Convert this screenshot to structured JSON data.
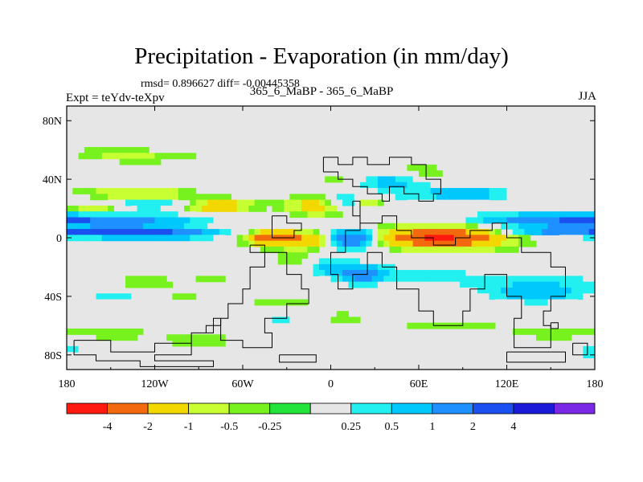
{
  "chart_data": {
    "type": "heatmap",
    "title": "Precipitation - Evaporation (in mm/day)",
    "stats_text": "rmsd= 0.896627 diff= -0.00445358",
    "left_label": "Expt = teYdv-teXpv",
    "center_label": "365_6_MaBP - 365_6_MaBP",
    "right_label": "JJA",
    "xlim": [
      -180,
      180
    ],
    "ylim": [
      -90,
      90
    ],
    "x_ticks": [
      {
        "value": -180,
        "label": "180"
      },
      {
        "value": -120,
        "label": "120W"
      },
      {
        "value": -60,
        "label": "60W"
      },
      {
        "value": 0,
        "label": "0"
      },
      {
        "value": 60,
        "label": "60E"
      },
      {
        "value": 120,
        "label": "120E"
      },
      {
        "value": 180,
        "label": "180"
      }
    ],
    "y_ticks": [
      {
        "value": 80,
        "label": "80N"
      },
      {
        "value": 40,
        "label": "40N"
      },
      {
        "value": 0,
        "label": "0"
      },
      {
        "value": -40,
        "label": "40S"
      },
      {
        "value": -80,
        "label": "80S"
      }
    ],
    "colorbar": {
      "colors": [
        "#ff1a0f",
        "#f26a0d",
        "#f2d800",
        "#c8ff32",
        "#78f21f",
        "#22e43a",
        "#e6e6e6",
        "#22f0f0",
        "#00c8fc",
        "#1e90ff",
        "#1a50f0",
        "#1a1ad8",
        "#7a28e6"
      ],
      "labels": [
        "-4",
        "-2",
        "-1",
        "-0.5",
        "-0.25",
        "0.25",
        "0.5",
        "1",
        "2",
        "4"
      ],
      "label_boundaries": [
        1,
        2,
        3,
        4,
        5,
        7,
        8,
        9,
        10,
        11
      ]
    },
    "features": [
      {
        "lat": 12,
        "lon": 180,
        "wlat": 3,
        "wlon": 60,
        "value": 2.5
      },
      {
        "lat": 13,
        "lon": 178,
        "wlat": 4.5,
        "wlon": 72,
        "value": 1.4
      },
      {
        "lat": 13,
        "lon": 180,
        "wlat": 7,
        "wlon": 85,
        "value": 0.7
      },
      {
        "lat": 5,
        "lon": -170,
        "wlat": 2.5,
        "wlon": 45,
        "value": 2.5
      },
      {
        "lat": 5,
        "lon": -175,
        "wlat": 3.5,
        "wlon": 60,
        "value": 1.4
      },
      {
        "lat": 5,
        "lon": -175,
        "wlat": 5,
        "wlon": 70,
        "value": 0.7
      },
      {
        "lat": 3,
        "lon": -120,
        "wlat": 2.5,
        "wlon": 30,
        "value": 2.5
      },
      {
        "lat": 3,
        "lon": -120,
        "wlat": 4,
        "wlon": 45,
        "value": 1.4
      },
      {
        "lat": 25,
        "lon": -140,
        "wlat": 5,
        "wlon": 35,
        "value": 0.7
      },
      {
        "lat": 24,
        "lon": -115,
        "wlat": 4,
        "wlon": 30,
        "value": 1.4
      },
      {
        "lat": 8,
        "lon": -172,
        "wlat": 3,
        "wlon": 14,
        "value": -1.5
      },
      {
        "lat": 18,
        "lon": -160,
        "wlat": 4,
        "wlon": 22,
        "value": -1.5
      },
      {
        "lat": 28,
        "lon": -125,
        "wlat": 5,
        "wlon": 30,
        "value": -1.5
      },
      {
        "lat": 22,
        "lon": -80,
        "wlat": 4,
        "wlon": 24,
        "value": -1.5
      },
      {
        "lat": 22,
        "lon": -80,
        "wlat": 6,
        "wlon": 30,
        "value": -0.4
      },
      {
        "lat": 30,
        "lon": -150,
        "wlat": 8,
        "wlon": 35,
        "value": -0.4
      },
      {
        "lat": 55,
        "lon": -120,
        "wlat": 4,
        "wlon": 40,
        "value": -0.4
      },
      {
        "lat": 58,
        "lon": -150,
        "wlat": 5,
        "wlon": 30,
        "value": -0.4
      },
      {
        "lat": 40,
        "lon": -130,
        "wlat": 4,
        "wlon": 20,
        "value": 0.35
      },
      {
        "lat": 40,
        "lon": -95,
        "wlat": 4,
        "wlon": 18,
        "value": 0.35
      },
      {
        "lat": 22,
        "lon": -10,
        "wlat": 6,
        "wlon": 20,
        "value": -1.5
      },
      {
        "lat": 25,
        "lon": 10,
        "wlat": 5,
        "wlon": 14,
        "value": 1.4
      },
      {
        "lat": 25,
        "lon": 25,
        "wlat": 3,
        "wlon": 10,
        "value": -1.5
      },
      {
        "lat": 38,
        "lon": 40,
        "wlat": 5,
        "wlon": 20,
        "value": 1.4
      },
      {
        "lat": 30,
        "lon": 60,
        "wlat": 6,
        "wlon": 28,
        "value": 0.7
      },
      {
        "lat": 30,
        "lon": 95,
        "wlat": 5,
        "wlon": 25,
        "value": 1.4
      },
      {
        "lat": 45,
        "lon": 60,
        "wlat": 6,
        "wlon": 25,
        "value": -0.4
      },
      {
        "lat": 40,
        "lon": 5,
        "wlat": 5,
        "wlon": 12,
        "value": -0.4
      },
      {
        "lat": 20,
        "lon": 150,
        "wlat": 5,
        "wlon": 30,
        "value": -0.4
      },
      {
        "lat": 0,
        "lon": 75,
        "wlat": 5,
        "wlon": 30,
        "value": -2.5
      },
      {
        "lat": 0,
        "lon": 80,
        "wlat": 8,
        "wlon": 45,
        "value": -1.5
      },
      {
        "lat": 2,
        "lon": 70,
        "wlat": 11,
        "wlon": 65,
        "value": -0.4
      },
      {
        "lat": 0,
        "lon": -40,
        "wlat": 4,
        "wlon": 14,
        "value": -2.5
      },
      {
        "lat": 0,
        "lon": -38,
        "wlat": 7,
        "wlon": 25,
        "value": -0.8
      },
      {
        "lat": -2,
        "lon": -18,
        "wlat": 5,
        "wlon": 16,
        "value": -1.5
      },
      {
        "lat": 0,
        "lon": 15,
        "wlat": 5,
        "wlon": 12,
        "value": 2.5
      },
      {
        "lat": -2,
        "lon": 15,
        "wlat": 8,
        "wlon": 18,
        "value": 1.4
      },
      {
        "lat": -25,
        "lon": 20,
        "wlat": 5,
        "wlon": 12,
        "value": 2.5
      },
      {
        "lat": -25,
        "lon": 25,
        "wlat": 9,
        "wlon": 20,
        "value": 0.7
      },
      {
        "lat": -20,
        "lon": 0,
        "wlat": 6,
        "wlon": 14,
        "value": 1.4
      },
      {
        "lat": -15,
        "lon": -25,
        "wlat": 6,
        "wlon": 14,
        "value": -0.4
      },
      {
        "lat": -30,
        "lon": -75,
        "wlat": 5,
        "wlon": 25,
        "value": -0.6
      },
      {
        "lat": -35,
        "lon": -65,
        "wlat": 8,
        "wlon": 28,
        "value": 0.6
      },
      {
        "lat": -25,
        "lon": 60,
        "wlat": 6,
        "wlon": 30,
        "value": 0.7
      },
      {
        "lat": -30,
        "lon": 95,
        "wlat": 8,
        "wlon": 30,
        "value": 0.4
      },
      {
        "lat": -38,
        "lon": 140,
        "wlat": 6,
        "wlon": 30,
        "value": 1.4
      },
      {
        "lat": -30,
        "lon": 150,
        "wlat": 8,
        "wlon": 40,
        "value": 0.7
      },
      {
        "lat": -30,
        "lon": -130,
        "wlat": 5,
        "wlon": 25,
        "value": -0.4
      },
      {
        "lat": -40,
        "lon": -100,
        "wlat": 6,
        "wlon": 35,
        "value": -0.4
      },
      {
        "lat": -40,
        "lon": -145,
        "wlat": 5,
        "wlon": 25,
        "value": 0.7
      },
      {
        "lat": -45,
        "lon": -40,
        "wlat": 6,
        "wlon": 35,
        "value": -0.4
      },
      {
        "lat": -55,
        "lon": -30,
        "wlat": 5,
        "wlon": 25,
        "value": 0.7
      },
      {
        "lat": -55,
        "lon": 0,
        "wlat": 6,
        "wlon": 30,
        "value": -0.4
      },
      {
        "lat": -65,
        "lon": -150,
        "wlat": 5,
        "wlon": 30,
        "value": -0.4
      },
      {
        "lat": -70,
        "lon": -90,
        "wlat": 5,
        "wlon": 30,
        "value": -0.4
      },
      {
        "lat": -60,
        "lon": 80,
        "wlat": 5,
        "wlon": 40,
        "value": -0.4
      },
      {
        "lat": -65,
        "lon": 150,
        "wlat": 5,
        "wlon": 30,
        "value": -0.4
      },
      {
        "lat": -75,
        "lon": -170,
        "wlat": 4,
        "wlon": 15,
        "value": 0.4
      },
      {
        "lat": -78,
        "lon": 175,
        "wlat": 4,
        "wlon": 10,
        "value": 0.7
      }
    ],
    "land_outlines": [
      [
        [
          -5,
          45
        ],
        [
          5,
          45
        ],
        [
          5,
          40
        ],
        [
          15,
          40
        ],
        [
          15,
          35
        ],
        [
          25,
          35
        ],
        [
          25,
          30
        ],
        [
          35,
          30
        ],
        [
          35,
          25
        ],
        [
          40,
          25
        ],
        [
          40,
          35
        ],
        [
          50,
          35
        ],
        [
          50,
          30
        ],
        [
          60,
          30
        ],
        [
          60,
          25
        ],
        [
          70,
          25
        ],
        [
          70,
          30
        ],
        [
          75,
          30
        ],
        [
          75,
          40
        ],
        [
          65,
          40
        ],
        [
          65,
          50
        ],
        [
          55,
          50
        ],
        [
          55,
          55
        ],
        [
          40,
          55
        ],
        [
          40,
          50
        ],
        [
          25,
          50
        ],
        [
          25,
          55
        ],
        [
          15,
          55
        ],
        [
          15,
          50
        ],
        [
          5,
          50
        ],
        [
          5,
          55
        ],
        [
          -5,
          55
        ],
        [
          -5,
          45
        ]
      ],
      [
        [
          15,
          25
        ],
        [
          15,
          15
        ],
        [
          20,
          15
        ],
        [
          20,
          10
        ],
        [
          35,
          10
        ],
        [
          35,
          15
        ],
        [
          45,
          15
        ],
        [
          45,
          5
        ],
        [
          55,
          5
        ],
        [
          55,
          0
        ],
        [
          70,
          0
        ],
        [
          70,
          -5
        ],
        [
          85,
          -5
        ],
        [
          85,
          0
        ],
        [
          95,
          0
        ],
        [
          95,
          5
        ],
        [
          110,
          5
        ],
        [
          110,
          10
        ],
        [
          120,
          10
        ],
        [
          120,
          0
        ],
        [
          130,
          0
        ],
        [
          130,
          -10
        ],
        [
          150,
          -10
        ],
        [
          150,
          -20
        ],
        [
          160,
          -20
        ],
        [
          160,
          -40
        ],
        [
          150,
          -40
        ],
        [
          150,
          -50
        ],
        [
          145,
          -50
        ],
        [
          145,
          -60
        ],
        [
          150,
          -60
        ],
        [
          150,
          -75
        ],
        [
          125,
          -75
        ],
        [
          125,
          -55
        ],
        [
          130,
          -55
        ],
        [
          130,
          -40
        ],
        [
          120,
          -40
        ],
        [
          120,
          -25
        ],
        [
          105,
          -25
        ],
        [
          105,
          -35
        ],
        [
          95,
          -35
        ],
        [
          95,
          -50
        ],
        [
          90,
          -50
        ],
        [
          90,
          -60
        ],
        [
          70,
          -60
        ],
        [
          70,
          -50
        ],
        [
          60,
          -50
        ],
        [
          60,
          -35
        ],
        [
          45,
          -35
        ],
        [
          45,
          -20
        ],
        [
          35,
          -20
        ],
        [
          35,
          -10
        ],
        [
          25,
          -10
        ],
        [
          25,
          -25
        ],
        [
          15,
          -25
        ],
        [
          15,
          -35
        ],
        [
          5,
          -35
        ],
        [
          5,
          -25
        ],
        [
          0,
          -25
        ],
        [
          0,
          -10
        ],
        [
          10,
          -10
        ],
        [
          10,
          5
        ],
        [
          20,
          5
        ],
        [
          20,
          25
        ],
        [
          15,
          25
        ]
      ],
      [
        [
          -55,
          -5
        ],
        [
          -45,
          -5
        ],
        [
          -45,
          -10
        ],
        [
          -30,
          -10
        ],
        [
          -30,
          -25
        ],
        [
          -20,
          -25
        ],
        [
          -20,
          -35
        ],
        [
          -15,
          -35
        ],
        [
          -15,
          -45
        ],
        [
          -30,
          -45
        ],
        [
          -30,
          -55
        ],
        [
          -45,
          -55
        ],
        [
          -45,
          -65
        ],
        [
          -40,
          -65
        ],
        [
          -40,
          -75
        ],
        [
          -60,
          -75
        ],
        [
          -60,
          -70
        ],
        [
          -75,
          -70
        ],
        [
          -75,
          -55
        ],
        [
          -70,
          -55
        ],
        [
          -70,
          -45
        ],
        [
          -60,
          -45
        ],
        [
          -60,
          -35
        ],
        [
          -55,
          -35
        ],
        [
          -55,
          -20
        ],
        [
          -45,
          -20
        ],
        [
          -45,
          -10
        ],
        [
          -55,
          -10
        ],
        [
          -55,
          -5
        ]
      ],
      [
        [
          -40,
          15
        ],
        [
          -30,
          15
        ],
        [
          -30,
          10
        ],
        [
          -20,
          10
        ],
        [
          -20,
          5
        ],
        [
          -25,
          5
        ],
        [
          -25,
          0
        ],
        [
          -40,
          0
        ],
        [
          -40,
          15
        ]
      ],
      [
        [
          -175,
          -70
        ],
        [
          -150,
          -70
        ],
        [
          -150,
          -78
        ],
        [
          -120,
          -78
        ],
        [
          -120,
          -72
        ],
        [
          -95,
          -72
        ],
        [
          -95,
          -65
        ],
        [
          -85,
          -65
        ],
        [
          -85,
          -60
        ],
        [
          -75,
          -60
        ],
        [
          -75,
          -55
        ],
        [
          -80,
          -55
        ],
        [
          -80,
          -65
        ],
        [
          -95,
          -65
        ],
        [
          -95,
          -80
        ],
        [
          -120,
          -80
        ],
        [
          -120,
          -84
        ],
        [
          -80,
          -84
        ],
        [
          -80,
          -88
        ],
        [
          -130,
          -88
        ],
        [
          -130,
          -84
        ],
        [
          -160,
          -84
        ],
        [
          -160,
          -80
        ],
        [
          -175,
          -80
        ],
        [
          -175,
          -70
        ]
      ],
      [
        [
          -35,
          -80
        ],
        [
          -35,
          -85
        ],
        [
          -10,
          -85
        ],
        [
          -10,
          -80
        ],
        [
          -35,
          -80
        ]
      ],
      [
        [
          120,
          -78
        ],
        [
          120,
          -85
        ],
        [
          160,
          -85
        ],
        [
          160,
          -78
        ],
        [
          120,
          -78
        ]
      ],
      [
        [
          165,
          -72
        ],
        [
          175,
          -72
        ],
        [
          175,
          -80
        ],
        [
          165,
          -80
        ],
        [
          165,
          -72
        ]
      ],
      [
        [
          150,
          -58
        ],
        [
          155,
          -58
        ],
        [
          155,
          -62
        ],
        [
          150,
          -62
        ],
        [
          150,
          -58
        ]
      ]
    ]
  },
  "title": "Precipitation - Evaporation (in mm/day)",
  "stats_text": "rmsd= 0.896627 diff= -0.00445358",
  "left_label": "Expt = teYdv-teXpv",
  "center_label": "365_6_MaBP - 365_6_MaBP",
  "right_label": "JJA",
  "colors": {
    "neutral": "#e6e6e6",
    "outline": "#000000"
  }
}
